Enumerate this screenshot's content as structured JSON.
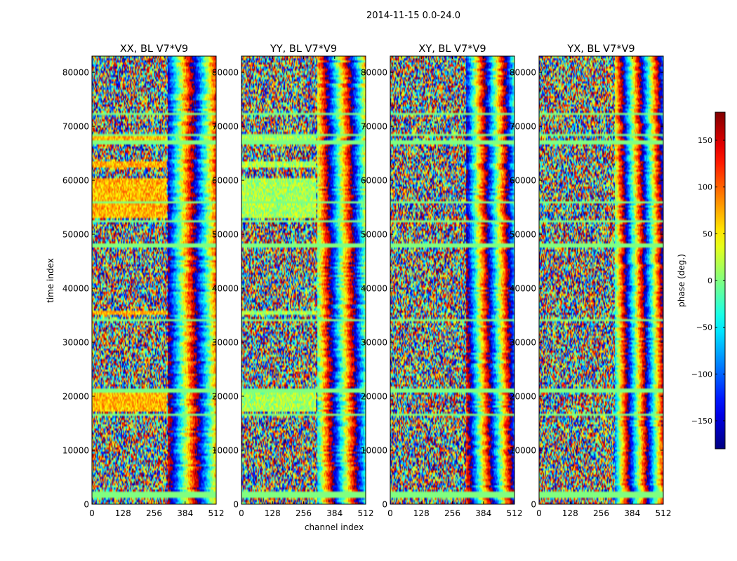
{
  "figure_title": "2014-11-15 0.0-24.0",
  "chart_data": {
    "type": "heatmap",
    "suptitle": "2014-11-15 0.0-24.0",
    "xlabel": "channel index",
    "ylabel": "time index",
    "xlim": [
      0,
      512
    ],
    "ylim": [
      0,
      83000
    ],
    "x_ticks": [
      0,
      128,
      256,
      384,
      512
    ],
    "y_ticks": [
      0,
      10000,
      20000,
      30000,
      40000,
      50000,
      60000,
      70000,
      80000
    ],
    "colormap": "jet",
    "colorbar": {
      "label": "phase (deg.)",
      "range": [
        -180,
        180
      ],
      "ticks": [
        150,
        100,
        50,
        0,
        -50,
        -100,
        -150
      ],
      "tick_labels": [
        "150",
        "100",
        "50",
        "0",
        "−50",
        "−100",
        "−150"
      ]
    },
    "panels": [
      {
        "title": "XX, BL V7*V9",
        "polarization": "XX",
        "baseline": "V7*V9",
        "bias_deg": 70
      },
      {
        "title": "YY, BL V7*V9",
        "polarization": "YY",
        "baseline": "V7*V9",
        "bias_deg": 15
      },
      {
        "title": "XY, BL V7*V9",
        "polarization": "XY",
        "baseline": "V7*V9",
        "bias_deg": 0
      },
      {
        "title": "YX, BL V7*V9",
        "polarization": "YX",
        "baseline": "V7*V9",
        "bias_deg": 0
      }
    ],
    "flag_bands_time": [
      [
        1200,
        2200
      ],
      [
        16300,
        16900
      ],
      [
        20700,
        21400
      ],
      [
        33800,
        34400
      ],
      [
        47500,
        48300
      ],
      [
        52100,
        52600
      ],
      [
        55900,
        56300
      ],
      [
        66800,
        67500
      ],
      [
        68000,
        68600
      ],
      [
        72100,
        72500
      ]
    ],
    "coherent_bands_time": [
      [
        17000,
        20600
      ],
      [
        35200,
        36000
      ],
      [
        53000,
        60500
      ],
      [
        62500,
        63500
      ],
      [
        67600,
        68400
      ]
    ]
  },
  "colors": {
    "background": "#ffffff",
    "flag_color": "#80ff80"
  }
}
